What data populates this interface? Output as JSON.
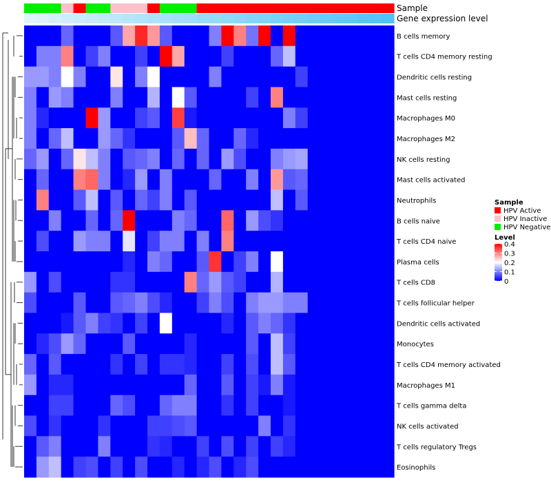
{
  "chart_data": {
    "type": "heatmap",
    "annotation_rows": [
      "Sample",
      "Gene expression level"
    ],
    "row_labels": [
      "B cells memory",
      "T cells CD4 memory resting",
      "Dendritic cells resting",
      "Mast cells resting",
      "Macrophages M0",
      "Macrophages M2",
      "NK cells resting",
      "Mast cells activated",
      "Neutrophils",
      "B cells naive",
      "T cells CD4 naive",
      "Plasma cells",
      "T cells CD8",
      "T cells follicular helper",
      "Dendritic cells activated",
      "Monocytes",
      "T cells CD4 memory activated",
      "Macrophages M1",
      "T cells gamma delta",
      "NK cells activated",
      "T cells regulatory  Tregs",
      "Eosinophils"
    ],
    "sample_groups": [
      "Negative",
      "Negative",
      "Negative",
      "Inactive",
      "Active",
      "Negative",
      "Negative",
      "Inactive",
      "Inactive",
      "Inactive",
      "Active",
      "Negative",
      "Negative",
      "Negative",
      "Active",
      "Active",
      "Active",
      "Active",
      "Active",
      "Active",
      "Active",
      "Active",
      "Active",
      "Active",
      "Active",
      "Active",
      "Active",
      "Active",
      "Active",
      "Active"
    ],
    "expression_level": [
      0.05,
      0.08,
      0.1,
      0.12,
      0.14,
      0.16,
      0.18,
      0.2,
      0.22,
      0.24,
      0.26,
      0.28,
      0.3,
      0.32,
      0.34,
      0.36,
      0.38,
      0.4,
      0.42,
      0.44,
      0.46,
      0.48,
      0.5,
      0.52,
      0.54,
      0.56,
      0.58,
      0.6,
      0.62,
      0.64
    ],
    "values": [
      [
        0,
        0,
        0,
        0.08,
        0,
        0,
        0,
        0.07,
        0.27,
        0.37,
        0.28,
        0.07,
        0,
        0,
        0,
        0.1,
        0.4,
        0.3,
        0.09,
        0.4,
        0,
        0.4,
        0,
        0,
        0,
        0,
        0,
        0,
        0,
        0
      ],
      [
        0,
        0.1,
        0.1,
        0.3,
        0,
        0.05,
        0.1,
        0,
        0,
        0.05,
        0,
        0.4,
        0.27,
        0,
        0,
        0,
        0.05,
        0,
        0,
        0,
        0.08,
        0.15,
        0,
        0,
        0,
        0,
        0,
        0,
        0,
        0
      ],
      [
        0.12,
        0.12,
        0.1,
        0.2,
        0.1,
        0,
        0,
        0.22,
        0,
        0.1,
        0.2,
        0,
        0,
        0,
        0,
        0.1,
        0,
        0,
        0,
        0,
        0,
        0,
        0.05,
        0,
        0,
        0,
        0,
        0,
        0,
        0
      ],
      [
        0.1,
        0,
        0.12,
        0.1,
        0,
        0,
        0,
        0.1,
        0,
        0,
        0.14,
        0,
        0.2,
        0.07,
        0,
        0,
        0,
        0,
        0.05,
        0,
        0.3,
        0,
        0,
        0,
        0,
        0,
        0,
        0,
        0,
        0
      ],
      [
        0.1,
        0.03,
        0,
        0,
        0,
        0.4,
        0.12,
        0,
        0,
        0.05,
        0.07,
        0,
        0.35,
        0.02,
        0,
        0,
        0,
        0,
        0,
        0,
        0,
        0.1,
        0.05,
        0,
        0,
        0,
        0,
        0,
        0,
        0
      ],
      [
        0.1,
        0,
        0.08,
        0.15,
        0,
        0,
        0.12,
        0.08,
        0.04,
        0,
        0,
        0,
        0.07,
        0.25,
        0.08,
        0,
        0,
        0.08,
        0.03,
        0,
        0,
        0,
        0,
        0,
        0,
        0,
        0,
        0,
        0,
        0
      ],
      [
        0.08,
        0.12,
        0,
        0.08,
        0.22,
        0.15,
        0.1,
        0,
        0.07,
        0.08,
        0.1,
        0,
        0.08,
        0,
        0.08,
        0,
        0.12,
        0.06,
        0,
        0,
        0.1,
        0.12,
        0.13,
        0,
        0,
        0,
        0,
        0,
        0,
        0
      ],
      [
        0,
        0.08,
        0,
        0,
        0.3,
        0.32,
        0.1,
        0,
        0.03,
        0.12,
        0,
        0.1,
        0,
        0,
        0,
        0.08,
        0,
        0,
        0.1,
        0,
        0.28,
        0.07,
        0.08,
        0,
        0,
        0,
        0,
        0,
        0,
        0
      ],
      [
        0,
        0.3,
        0,
        0,
        0.07,
        0.15,
        0,
        0.07,
        0,
        0.08,
        0.05,
        0.1,
        0,
        0.07,
        0,
        0,
        0,
        0,
        0,
        0,
        0.15,
        0,
        0.07,
        0,
        0,
        0,
        0,
        0,
        0,
        0
      ],
      [
        0,
        0,
        0.1,
        0,
        0,
        0.08,
        0,
        0.08,
        0.4,
        0,
        0,
        0,
        0.1,
        0.08,
        0,
        0,
        0.32,
        0,
        0.12,
        0.06,
        0.04,
        0,
        0,
        0,
        0,
        0,
        0,
        0,
        0,
        0
      ],
      [
        0,
        0.06,
        0,
        0,
        0.12,
        0.1,
        0.1,
        0,
        0.18,
        0,
        0.05,
        0.1,
        0.1,
        0,
        0.1,
        0,
        0.3,
        0,
        0,
        0,
        0,
        0,
        0,
        0,
        0,
        0,
        0,
        0,
        0,
        0
      ],
      [
        0,
        0,
        0,
        0,
        0,
        0,
        0,
        0,
        0.03,
        0,
        0.1,
        0.08,
        0,
        0,
        0.07,
        0.36,
        0,
        0.05,
        0.1,
        0,
        0.2,
        0,
        0,
        0,
        0,
        0,
        0,
        0,
        0,
        0
      ],
      [
        0.12,
        0,
        0.06,
        0,
        0,
        0,
        0,
        0.04,
        0.04,
        0,
        0,
        0,
        0,
        0.3,
        0.08,
        0.12,
        0.07,
        0.05,
        0,
        0,
        0.14,
        0,
        0,
        0,
        0,
        0,
        0,
        0,
        0,
        0
      ],
      [
        0.06,
        0,
        0,
        0,
        0.07,
        0,
        0,
        0.07,
        0.08,
        0.1,
        0.06,
        0.03,
        0,
        0,
        0.05,
        0.1,
        0.06,
        0,
        0.1,
        0.12,
        0.12,
        0.1,
        0.1,
        0,
        0,
        0,
        0,
        0,
        0,
        0
      ],
      [
        0,
        0,
        0,
        0.02,
        0.07,
        0.1,
        0.05,
        0.04,
        0,
        0.05,
        0,
        0.2,
        0,
        0,
        0,
        0,
        0.03,
        0,
        0.07,
        0.1,
        0.08,
        0.04,
        0,
        0,
        0,
        0,
        0,
        0,
        0,
        0
      ],
      [
        0,
        0.03,
        0.06,
        0.12,
        0.08,
        0,
        0,
        0,
        0.07,
        0,
        0,
        0,
        0,
        0.03,
        0,
        0,
        0,
        0,
        0.07,
        0,
        0.15,
        0.05,
        0,
        0,
        0,
        0,
        0,
        0,
        0,
        0
      ],
      [
        0.08,
        0,
        0.07,
        0,
        0,
        0,
        0,
        0.04,
        0,
        0.05,
        0,
        0.04,
        0.04,
        0.03,
        0,
        0,
        0.05,
        0,
        0.06,
        0,
        0.15,
        0.07,
        0,
        0,
        0,
        0,
        0,
        0,
        0,
        0
      ],
      [
        0.12,
        0,
        0.03,
        0.03,
        0,
        0,
        0,
        0,
        0,
        0,
        0,
        0,
        0,
        0.08,
        0,
        0,
        0.07,
        0,
        0.05,
        0.02,
        0.1,
        0.02,
        0,
        0,
        0,
        0,
        0,
        0,
        0,
        0
      ],
      [
        0,
        0,
        0.05,
        0.05,
        0,
        0,
        0,
        0.08,
        0.06,
        0,
        0,
        0.08,
        0.1,
        0.1,
        0,
        0,
        0.04,
        0,
        0.05,
        0,
        0,
        0.02,
        0,
        0,
        0,
        0,
        0,
        0,
        0,
        0
      ],
      [
        0.06,
        0,
        0.04,
        0,
        0,
        0,
        0.04,
        0,
        0,
        0,
        0.05,
        0.05,
        0.06,
        0.07,
        0,
        0,
        0,
        0,
        0,
        0.1,
        0,
        0.04,
        0,
        0,
        0,
        0,
        0,
        0,
        0,
        0
      ],
      [
        0,
        0.07,
        0.1,
        0,
        0,
        0,
        0.1,
        0,
        0,
        0,
        0.04,
        0.03,
        0,
        0,
        0.05,
        0,
        0.06,
        0,
        0.05,
        0,
        0.05,
        0.03,
        0,
        0,
        0,
        0,
        0,
        0,
        0,
        0
      ],
      [
        0,
        0.12,
        0.15,
        0,
        0.05,
        0.06,
        0,
        0.05,
        0,
        0.06,
        0,
        0,
        0.03,
        0,
        0.03,
        0.06,
        0,
        0.03,
        0.06,
        0,
        0,
        0,
        0,
        0,
        0,
        0,
        0,
        0,
        0,
        0
      ]
    ],
    "legend": {
      "sample_title": "Sample",
      "sample_items": [
        {
          "label": "HPV Active",
          "color": "#ff0000"
        },
        {
          "label": "HPV Inactive",
          "color": "#ffc0cb"
        },
        {
          "label": "HPV Negative",
          "color": "#00ee00"
        }
      ],
      "level_title": "Level",
      "level_ticks": [
        "0.4",
        "0.3",
        "0.2",
        "0.1",
        "0"
      ],
      "level_range": [
        0,
        0.4
      ]
    }
  },
  "colors": {
    "low": "#0000ff",
    "mid": "#ffffff",
    "high": "#ff0000",
    "expr_low": "#e0f4fb",
    "expr_high": "#4fc3f7"
  },
  "sample_color_map": {
    "Active": "#ff0000",
    "Inactive": "#ffc0cb",
    "Negative": "#00ee00"
  }
}
